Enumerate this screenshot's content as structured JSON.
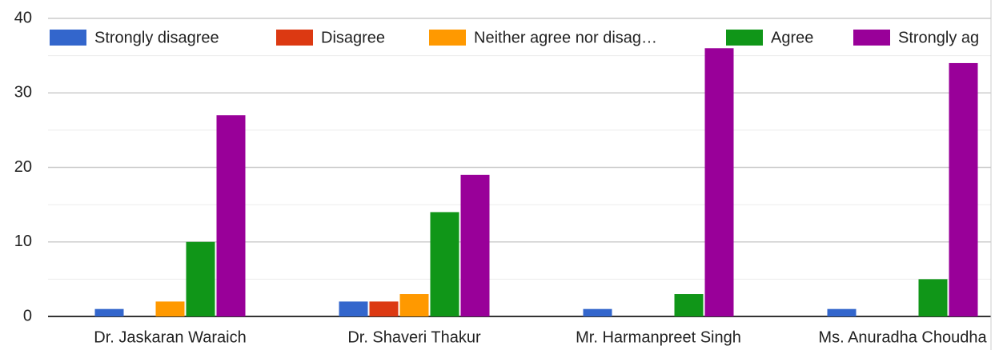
{
  "chart_data": {
    "type": "bar",
    "categories": [
      "Dr. Jaskaran Waraich",
      "Dr. Shaveri Thakur",
      "Mr. Harmanpreet Singh",
      "Ms. Anuradha Choudha"
    ],
    "series": [
      {
        "name": "Strongly disagree",
        "color": "#3366cc",
        "values": [
          1,
          2,
          1,
          1
        ]
      },
      {
        "name": "Disagree",
        "color": "#dc3912",
        "values": [
          0,
          2,
          0,
          0
        ]
      },
      {
        "name": "Neither agree nor disag…",
        "color": "#ff9900",
        "values": [
          2,
          3,
          0,
          0
        ]
      },
      {
        "name": "Agree",
        "color": "#109618",
        "values": [
          10,
          14,
          3,
          5
        ]
      },
      {
        "name": "Strongly ag",
        "color": "#990099",
        "values": [
          27,
          19,
          36,
          34
        ]
      }
    ],
    "ylim": [
      0,
      40
    ],
    "yticks": [
      0,
      10,
      20,
      30,
      40
    ],
    "grid": true,
    "legend": "top"
  }
}
